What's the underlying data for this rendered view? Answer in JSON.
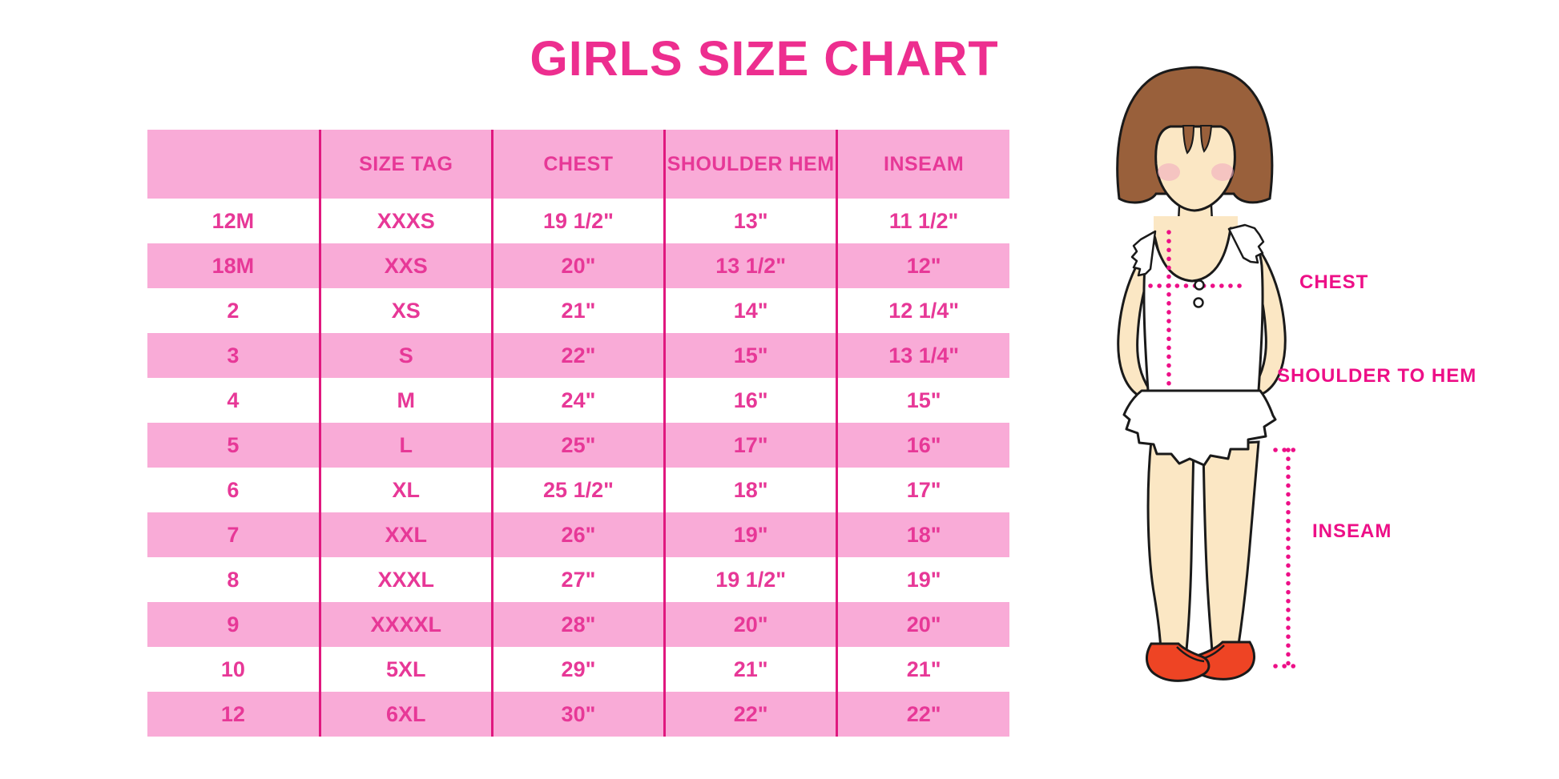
{
  "title": "GIRLS SIZE CHART",
  "chart_data": {
    "type": "table",
    "title": "GIRLS SIZE CHART",
    "columns": [
      "",
      "SIZE TAG",
      "CHEST",
      "SHOULDER HEM",
      "INSEAM"
    ],
    "rows": [
      [
        "12M",
        "XXXS",
        "19 1/2\"",
        "13\"",
        "11 1/2\""
      ],
      [
        "18M",
        "XXS",
        "20\"",
        "13 1/2\"",
        "12\""
      ],
      [
        "2",
        "XS",
        "21\"",
        "14\"",
        "12 1/4\""
      ],
      [
        "3",
        "S",
        "22\"",
        "15\"",
        "13 1/4\""
      ],
      [
        "4",
        "M",
        "24\"",
        "16\"",
        "15\""
      ],
      [
        "5",
        "L",
        "25\"",
        "17\"",
        "16\""
      ],
      [
        "6",
        "XL",
        "25 1/2\"",
        "18\"",
        "17\""
      ],
      [
        "7",
        "XXL",
        "26\"",
        "19\"",
        "18\""
      ],
      [
        "8",
        "XXXL",
        "27\"",
        "19 1/2\"",
        "19\""
      ],
      [
        "9",
        "XXXXL",
        "28\"",
        "20\"",
        "20\""
      ],
      [
        "10",
        "5XL",
        "29\"",
        "21\"",
        "21\""
      ],
      [
        "12",
        "6XL",
        "30\"",
        "22\"",
        "22\""
      ]
    ]
  },
  "diagram": {
    "chest_label": "CHEST",
    "shoulder_to_hem_label": "SHOULDER TO HEM",
    "inseam_label": "INSEAM"
  },
  "colors": {
    "row_pink": "#F9ABD7",
    "text_pink": "#E73897",
    "title_pink": "#ED2E8F",
    "divider_pink": "#E0187F",
    "dotted_line_pink": "#ED0F87",
    "hair_brown": "#99603B",
    "skin": "#FBE7C4",
    "blush": "#F2AEC0",
    "shoe_red": "#EE4424"
  }
}
